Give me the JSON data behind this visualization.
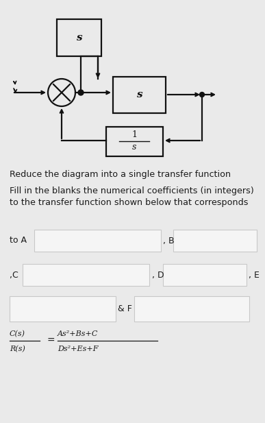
{
  "bg_color": "#eaeaea",
  "title1": "Reduce the diagram into a single transfer function",
  "title2a": "Fill in the blanks the numerical coefficients (in integers)",
  "title2b": "to the transfer function shown below that corresponds",
  "label_toA": "to A",
  "label_B": ", B",
  "label_C": ",C",
  "label_D": ", D",
  "label_E": ", E",
  "label_F": "& F",
  "tf_num": "As²+Bs+C",
  "tf_den": "Ds²+Es+F",
  "box_facecolor": "#f5f5f5",
  "box_edgecolor": "#c8c8c8",
  "text_color": "#1a1a1a",
  "line_color": "#1a1a1a",
  "diagram_color": "#111111",
  "font_size_title": 9.2,
  "font_size_label": 9.0,
  "font_size_tf": 8.0
}
